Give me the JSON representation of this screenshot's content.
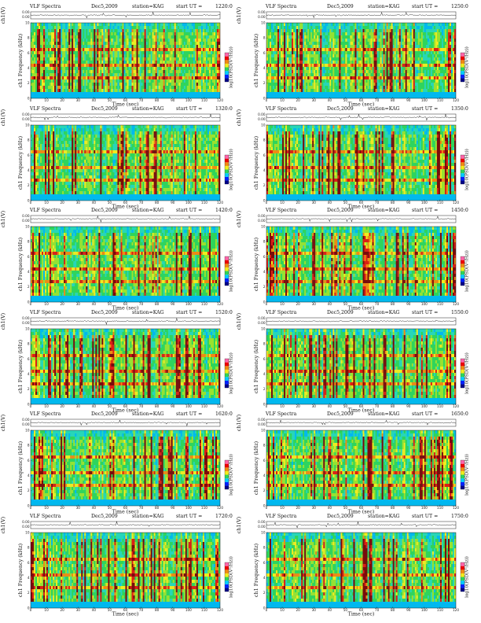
{
  "chart_data": [
    {
      "type": "heatmap",
      "panel_id": "p1",
      "title": "VLF Spectra",
      "date": "Dec5,2009",
      "station": "station=KAG",
      "start_label": "start  UT =",
      "start_time": "1220:0",
      "line_ylabel": "ch1(V)",
      "line_yticks": [
        "0.00",
        "0.00"
      ],
      "ylabel": "ch1 Frequency (kHz)",
      "xlabel": "Time (sec)",
      "xlim": [
        0,
        120
      ],
      "ylim": [
        0,
        10
      ],
      "xticks": [
        0,
        10,
        20,
        30,
        40,
        50,
        60,
        70,
        80,
        90,
        100,
        110,
        120
      ],
      "yticks": [
        0,
        2,
        4,
        6,
        8,
        10
      ],
      "colorbar_label": "log10(PSD(V²/Hz))",
      "colorbar_ticks": [
        "",
        ""
      ]
    },
    {
      "type": "heatmap",
      "panel_id": "p2",
      "title": "VLF Spectra",
      "date": "Dec5,2009",
      "station": "station=KAG",
      "start_label": "start  UT =",
      "start_time": "1250:0",
      "line_ylabel": "ch1(V)",
      "line_yticks": [
        "0.00",
        "0.00"
      ],
      "ylabel": "ch1 Frequency (kHz)",
      "xlabel": "Time (sec)",
      "xlim": [
        0,
        120
      ],
      "ylim": [
        0,
        10
      ],
      "xticks": [
        0,
        10,
        20,
        30,
        40,
        50,
        60,
        70,
        80,
        90,
        100,
        110,
        120
      ],
      "yticks": [
        0,
        2,
        4,
        6,
        8,
        10
      ],
      "colorbar_label": "log10(PSD(V²/Hz))",
      "colorbar_ticks": [
        "",
        ""
      ]
    },
    {
      "type": "heatmap",
      "panel_id": "p3",
      "title": "VLF Spectra",
      "date": "Dec5,2009",
      "station": "station=KAG",
      "start_label": "start  UT =",
      "start_time": "1320:0",
      "line_ylabel": "ch1(V)",
      "line_yticks": [
        "0.00",
        "0.00"
      ],
      "ylabel": "ch1 Frequency (kHz)",
      "xlabel": "Time (sec)",
      "xlim": [
        0,
        120
      ],
      "ylim": [
        0,
        10
      ],
      "xticks": [
        0,
        10,
        20,
        30,
        40,
        50,
        60,
        70,
        80,
        90,
        100,
        110,
        120
      ],
      "yticks": [
        0,
        2,
        4,
        6,
        8,
        10
      ],
      "colorbar_label": "log10(PSD(V²/Hz))",
      "colorbar_ticks": [
        "",
        ""
      ]
    },
    {
      "type": "heatmap",
      "panel_id": "p4",
      "title": "VLF Spectra",
      "date": "Dec5,2009",
      "station": "station=KAG",
      "start_label": "start  UT =",
      "start_time": "1350:0",
      "line_ylabel": "ch1(V)",
      "line_yticks": [
        "0.00",
        "0.00"
      ],
      "ylabel": "ch1 Frequency (kHz)",
      "xlabel": "Time (sec)",
      "xlim": [
        0,
        120
      ],
      "ylim": [
        0,
        10
      ],
      "xticks": [
        0,
        10,
        20,
        30,
        40,
        50,
        60,
        70,
        80,
        90,
        100,
        110,
        120
      ],
      "yticks": [
        0,
        2,
        4,
        6,
        8,
        10
      ],
      "colorbar_label": "log10(PSD(V²/Hz))",
      "colorbar_ticks": [
        "",
        ""
      ]
    },
    {
      "type": "heatmap",
      "panel_id": "p5",
      "title": "VLF Spectra",
      "date": "Dec5,2009",
      "station": "station=KAG",
      "start_label": "start  UT =",
      "start_time": "1420:0",
      "line_ylabel": "ch1(V)",
      "line_yticks": [
        "0.00",
        "0.00"
      ],
      "ylabel": "ch1 Frequency (kHz)",
      "xlabel": "Time (sec)",
      "xlim": [
        0,
        120
      ],
      "ylim": [
        0,
        10
      ],
      "xticks": [
        0,
        10,
        20,
        30,
        40,
        50,
        60,
        70,
        80,
        90,
        100,
        110,
        120
      ],
      "yticks": [
        0,
        2,
        4,
        6,
        8,
        10
      ],
      "colorbar_label": "log10(PSD(V²/Hz))",
      "colorbar_ticks": [
        "",
        ""
      ]
    },
    {
      "type": "heatmap",
      "panel_id": "p6",
      "title": "VLF Spectra",
      "date": "Dec5,2009",
      "station": "station=KAG",
      "start_label": "start  UT =",
      "start_time": "1450:0",
      "line_ylabel": "ch1(V)",
      "line_yticks": [
        "0.00",
        "0.00"
      ],
      "ylabel": "ch1 Frequency (kHz)",
      "xlabel": "Time (sec)",
      "xlim": [
        0,
        120
      ],
      "ylim": [
        0,
        10
      ],
      "xticks": [
        0,
        10,
        20,
        30,
        40,
        50,
        60,
        70,
        80,
        90,
        100,
        110,
        120
      ],
      "yticks": [
        0,
        2,
        4,
        6,
        8,
        10
      ],
      "colorbar_label": "log10(PSD(V²/Hz))",
      "colorbar_ticks": [
        "",
        ""
      ]
    },
    {
      "type": "heatmap",
      "panel_id": "p7",
      "title": "VLF Spectra",
      "date": "Dec5,2009",
      "station": "station=KAG",
      "start_label": "start  UT =",
      "start_time": "1520:0",
      "line_ylabel": "ch1(V)",
      "line_yticks": [
        "0.00",
        "0.00"
      ],
      "ylabel": "ch1 Frequency (kHz)",
      "xlabel": "Time (sec)",
      "xlim": [
        0,
        120
      ],
      "ylim": [
        0,
        10
      ],
      "xticks": [
        0,
        10,
        20,
        30,
        40,
        50,
        60,
        70,
        80,
        90,
        100,
        110,
        120
      ],
      "yticks": [
        0,
        2,
        4,
        6,
        8,
        10
      ],
      "colorbar_label": "log10(PSD(V²/Hz))",
      "colorbar_ticks": [
        "",
        ""
      ]
    },
    {
      "type": "heatmap",
      "panel_id": "p8",
      "title": "VLF Spectra",
      "date": "Dec5,2009",
      "station": "station=KAG",
      "start_label": "start  UT =",
      "start_time": "1550:0",
      "line_ylabel": "ch1(V)",
      "line_yticks": [
        "0.00",
        "0.00"
      ],
      "ylabel": "ch1 Frequency (kHz)",
      "xlabel": "Time (sec)",
      "xlim": [
        0,
        120
      ],
      "ylim": [
        0,
        10
      ],
      "xticks": [
        0,
        10,
        20,
        30,
        40,
        50,
        60,
        70,
        80,
        90,
        100,
        110,
        120
      ],
      "yticks": [
        0,
        2,
        4,
        6,
        8,
        10
      ],
      "colorbar_label": "log10(PSD(V²/Hz))",
      "colorbar_ticks": [
        "",
        ""
      ]
    },
    {
      "type": "heatmap",
      "panel_id": "p9",
      "title": "VLF Spectra",
      "date": "Dec5,2009",
      "station": "station=KAG",
      "start_label": "start  UT =",
      "start_time": "1620:0",
      "line_ylabel": "ch1(V)",
      "line_yticks": [
        "0.00",
        "0.00"
      ],
      "ylabel": "ch1 Frequency (kHz)",
      "xlabel": "Time (sec)",
      "xlim": [
        0,
        120
      ],
      "ylim": [
        0,
        10
      ],
      "xticks": [
        0,
        10,
        20,
        30,
        40,
        50,
        60,
        70,
        80,
        90,
        100,
        110,
        120
      ],
      "yticks": [
        0,
        2,
        4,
        6,
        8,
        10
      ],
      "colorbar_label": "log10(PSD(V²/Hz))",
      "colorbar_ticks": [
        "",
        ""
      ]
    },
    {
      "type": "heatmap",
      "panel_id": "p10",
      "title": "VLF Spectra",
      "date": "Dec5,2009",
      "station": "station=KAG",
      "start_label": "start  UT =",
      "start_time": "1650:0",
      "line_ylabel": "ch1(V)",
      "line_yticks": [
        "0.00",
        "0.00"
      ],
      "ylabel": "ch1 Frequency (kHz)",
      "xlabel": "Time (sec)",
      "xlim": [
        0,
        120
      ],
      "ylim": [
        0,
        10
      ],
      "xticks": [
        0,
        10,
        20,
        30,
        40,
        50,
        60,
        70,
        80,
        90,
        100,
        110,
        120
      ],
      "yticks": [
        0,
        2,
        4,
        6,
        8,
        10
      ],
      "colorbar_label": "log10(PSD(V²/Hz))",
      "colorbar_ticks": [
        "",
        ""
      ]
    },
    {
      "type": "heatmap",
      "panel_id": "p11",
      "title": "VLF Spectra",
      "date": "Dec5,2009",
      "station": "station=KAG",
      "start_label": "start  UT =",
      "start_time": "1720:0",
      "line_ylabel": "ch1(V)",
      "line_yticks": [
        "0.00",
        "0.00"
      ],
      "ylabel": "ch1 Frequency (kHz)",
      "xlabel": "Time (sec)",
      "xlim": [
        0,
        120
      ],
      "ylim": [
        0,
        10
      ],
      "xticks": [
        0,
        10,
        20,
        30,
        40,
        50,
        60,
        70,
        80,
        90,
        100,
        110,
        120
      ],
      "yticks": [
        0,
        2,
        4,
        6,
        8,
        10
      ],
      "colorbar_label": "log10(PSD(V²/Hz))",
      "colorbar_ticks": [
        "",
        ""
      ]
    },
    {
      "type": "heatmap",
      "panel_id": "p12",
      "title": "VLF Spectra",
      "date": "Dec5,2009",
      "station": "station=KAG",
      "start_label": "start  UT =",
      "start_time": "1750:0",
      "line_ylabel": "ch1(V)",
      "line_yticks": [
        "0.00",
        "0.00"
      ],
      "ylabel": "ch1 Frequency (kHz)",
      "xlabel": "Time (sec)",
      "xlim": [
        0,
        120
      ],
      "ylim": [
        0,
        10
      ],
      "xticks": [
        0,
        10,
        20,
        30,
        40,
        50,
        60,
        70,
        80,
        90,
        100,
        110,
        120
      ],
      "yticks": [
        0,
        2,
        4,
        6,
        8,
        10
      ],
      "colorbar_label": "log10(PSD(V²/Hz))",
      "colorbar_ticks": [
        "",
        ""
      ]
    }
  ],
  "colors": {
    "spectrogram_palette": [
      "#1133cc",
      "#00b8f0",
      "#27d6b8",
      "#2fd45a",
      "#9ae22e",
      "#f2ec1e",
      "#f08a12",
      "#dd1e14",
      "#7a0a0a"
    ],
    "colorbar_palette": [
      "#000088",
      "#0022ff",
      "#00ccff",
      "#2fd45a",
      "#f2ec1e",
      "#f08a12",
      "#ee0000",
      "#ff66aa"
    ],
    "axis_color": "#222222"
  }
}
